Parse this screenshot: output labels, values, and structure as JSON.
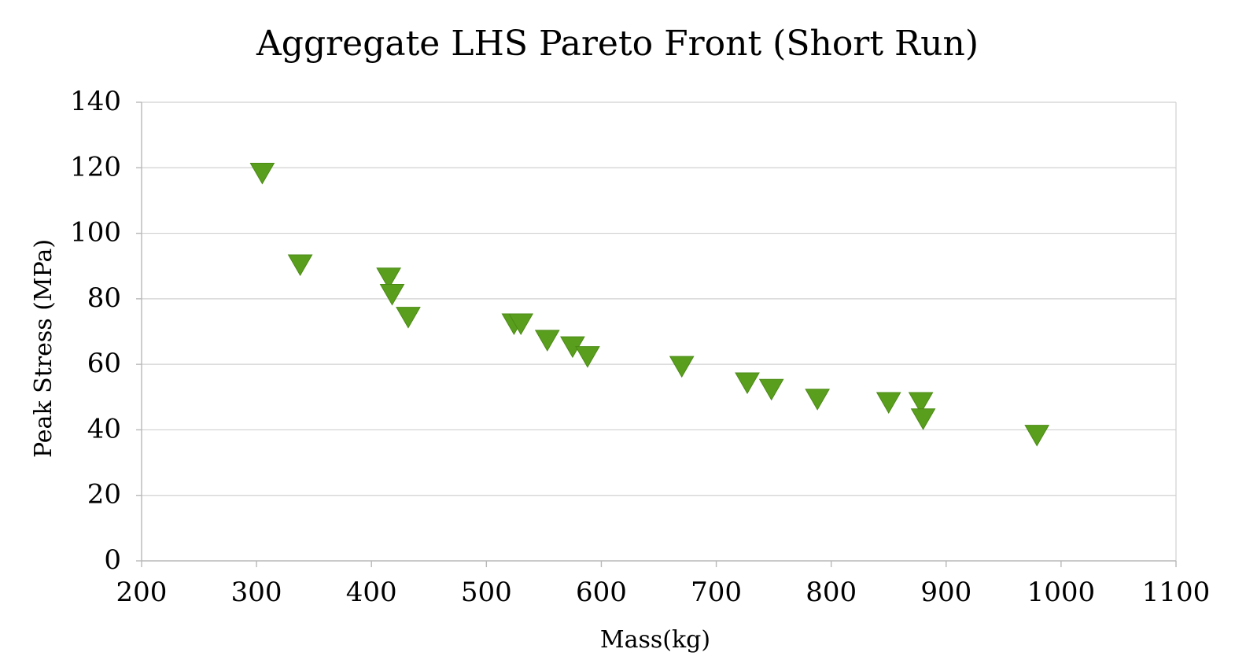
{
  "chart_data": {
    "type": "scatter",
    "title": "Aggregate LHS Pareto Front (Short Run)",
    "xlabel": "Mass(kg)",
    "ylabel": "Peak Stress (MPa)",
    "xlim": [
      200,
      1100
    ],
    "ylim": [
      0,
      140
    ],
    "x_ticks": [
      200,
      300,
      400,
      500,
      600,
      700,
      800,
      900,
      1000,
      1100
    ],
    "y_ticks": [
      0,
      20,
      40,
      60,
      80,
      100,
      120,
      140
    ],
    "grid": {
      "horizontal": true,
      "vertical": false
    },
    "legend": "none",
    "marker": "triangle-down",
    "marker_color": "#5a9e1e",
    "gridline_color": "#d0d0d0",
    "series": [
      {
        "points": [
          {
            "x": 305,
            "y": 119
          },
          {
            "x": 338,
            "y": 91
          },
          {
            "x": 415,
            "y": 87
          },
          {
            "x": 418,
            "y": 82
          },
          {
            "x": 432,
            "y": 75
          },
          {
            "x": 524,
            "y": 73
          },
          {
            "x": 530,
            "y": 73
          },
          {
            "x": 553,
            "y": 68
          },
          {
            "x": 575,
            "y": 66
          },
          {
            "x": 588,
            "y": 63
          },
          {
            "x": 670,
            "y": 60
          },
          {
            "x": 727,
            "y": 55
          },
          {
            "x": 748,
            "y": 53
          },
          {
            "x": 788,
            "y": 50
          },
          {
            "x": 850,
            "y": 49
          },
          {
            "x": 878,
            "y": 49
          },
          {
            "x": 880,
            "y": 44
          },
          {
            "x": 979,
            "y": 39
          }
        ]
      }
    ]
  }
}
